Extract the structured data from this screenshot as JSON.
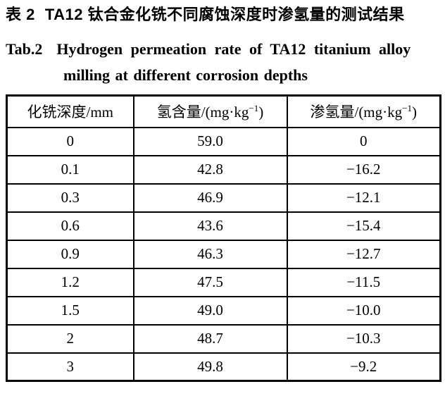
{
  "caption": {
    "zh_label": "表 2",
    "zh_text": "TA12 钛合金化铣不同腐蚀深度时渗氢量的测试结果",
    "en_label": "Tab.2",
    "en_line1": "Hydrogen permeation rate of TA12 titanium alloy",
    "en_line2": "milling at different corrosion depths"
  },
  "table": {
    "headers": [
      {
        "prefix": "化铣深度/mm",
        "sup": "",
        "suffix": ""
      },
      {
        "prefix": "氢含量/(mg·kg",
        "sup": "−1",
        "suffix": ")"
      },
      {
        "prefix": "渗氢量/(mg·kg",
        "sup": "−1",
        "suffix": ")"
      }
    ],
    "rows": [
      [
        "0",
        "59.0",
        "0"
      ],
      [
        "0.1",
        "42.8",
        "−16.2"
      ],
      [
        "0.3",
        "46.9",
        "−12.1"
      ],
      [
        "0.6",
        "43.6",
        "−15.4"
      ],
      [
        "0.9",
        "46.3",
        "−12.7"
      ],
      [
        "1.2",
        "47.5",
        "−11.5"
      ],
      [
        "1.5",
        "49.0",
        "−10.0"
      ],
      [
        "2",
        "48.7",
        "−10.3"
      ],
      [
        "3",
        "49.8",
        "−9.2"
      ]
    ]
  },
  "colors": {
    "background": "#ffffff",
    "text": "#000000",
    "border": "#000000"
  }
}
